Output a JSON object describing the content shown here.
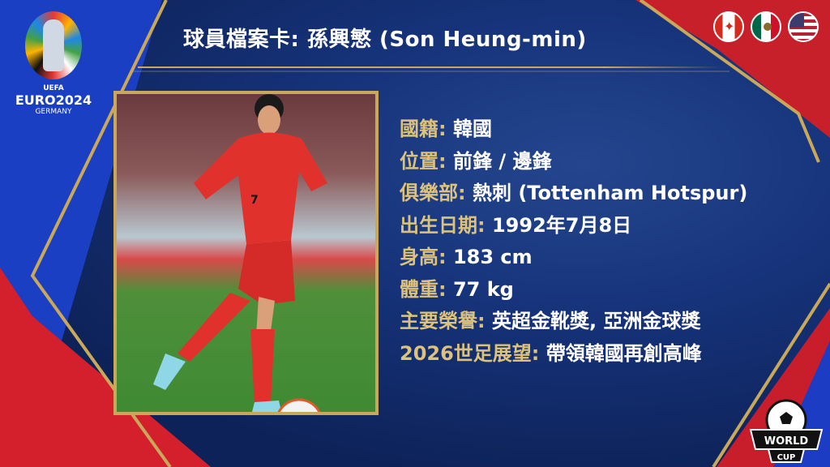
{
  "title": "球員檔案卡: 孫興慜 (Son Heung-min)",
  "logo": {
    "uefa": "UEFA",
    "euro": "EURO2024",
    "country": "GERMANY"
  },
  "flags": [
    "canada-flag",
    "mexico-flag",
    "usa-flag"
  ],
  "info": [
    {
      "label": "國籍:",
      "value": "韓國"
    },
    {
      "label": "位置:",
      "value": "前鋒 / 邊鋒"
    },
    {
      "label": "俱樂部:",
      "value": "熱刺 (Tottenham Hotspur)"
    },
    {
      "label": "出生日期:",
      "value": "1992年7月8日"
    },
    {
      "label": "身高:",
      "value": "183 cm"
    },
    {
      "label": "體重:",
      "value": "77 kg"
    },
    {
      "label": "主要榮譽:",
      "value": "英超金靴獎, 亞洲金球獎"
    },
    {
      "label": "2026世足展望:",
      "value": "帶領韓國再創高峰"
    }
  ],
  "badge": {
    "line1": "WORLD",
    "line2": "CUP"
  },
  "player_number": "7",
  "colors": {
    "label": "#dcc27c",
    "value": "#ffffff",
    "frame": "#c9a85a",
    "background": "#0d2258"
  }
}
